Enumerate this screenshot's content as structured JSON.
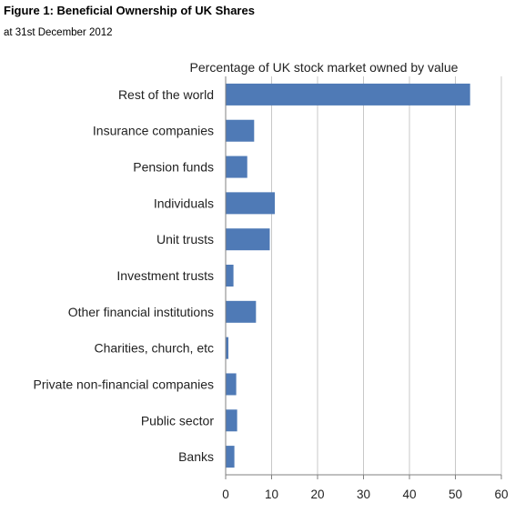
{
  "header": {
    "title": "Figure 1: Beneficial Ownership of UK Shares",
    "subtitle": "at 31st December 2012"
  },
  "chart_data": {
    "type": "bar",
    "orientation": "horizontal",
    "title": "Percentage of UK stock market owned by value",
    "categories": [
      "Rest of the world",
      "Insurance companies",
      "Pension funds",
      "Individuals",
      "Unit trusts",
      "Investment trusts",
      "Other financial institutions",
      "Charities, church, etc",
      "Private non-financial companies",
      "Public sector",
      "Banks"
    ],
    "values": [
      53.2,
      6.2,
      4.7,
      10.7,
      9.6,
      1.7,
      6.6,
      0.6,
      2.3,
      2.5,
      1.9
    ],
    "xlim": [
      0,
      60
    ],
    "xticks": [
      "0",
      "10",
      "20",
      "30",
      "40",
      "50",
      "60"
    ],
    "xlabel": "",
    "ylabel": "",
    "grid": "vertical",
    "bar_color": "#4f7ab6",
    "grid_color": "#c8c8c8"
  }
}
